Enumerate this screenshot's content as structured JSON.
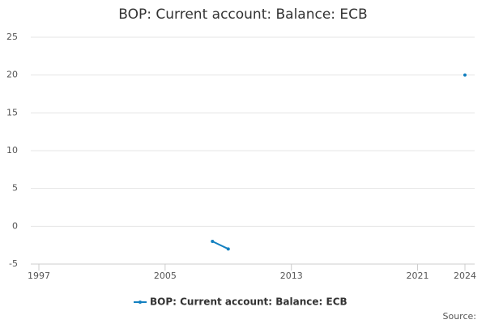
{
  "chart_data": {
    "type": "line",
    "title": "BOP: Current account: Balance: ECB",
    "x": [
      1997,
      1998,
      1999,
      2000,
      2001,
      2002,
      2003,
      2004,
      2005,
      2006,
      2007,
      2008,
      2009,
      2010,
      2011,
      2012,
      2013,
      2014,
      2015,
      2016,
      2017,
      2018,
      2019,
      2020,
      2021,
      2022,
      2023,
      2024
    ],
    "series": [
      {
        "name": "BOP: Current account: Balance: ECB",
        "color": "#1380c0",
        "values": [
          null,
          null,
          null,
          null,
          null,
          null,
          null,
          null,
          null,
          null,
          null,
          -2,
          -3,
          null,
          null,
          null,
          null,
          null,
          null,
          null,
          null,
          null,
          null,
          null,
          null,
          null,
          null,
          20
        ]
      }
    ],
    "xlim": [
      1997,
      2024
    ],
    "xticks": [
      1997,
      2005,
      2013,
      2021,
      2024
    ],
    "ylim": [
      -5,
      25
    ],
    "yticks": [
      -5,
      0,
      5,
      10,
      15,
      20,
      25
    ],
    "grid": true,
    "legend": "bottom",
    "source": "Source:"
  }
}
